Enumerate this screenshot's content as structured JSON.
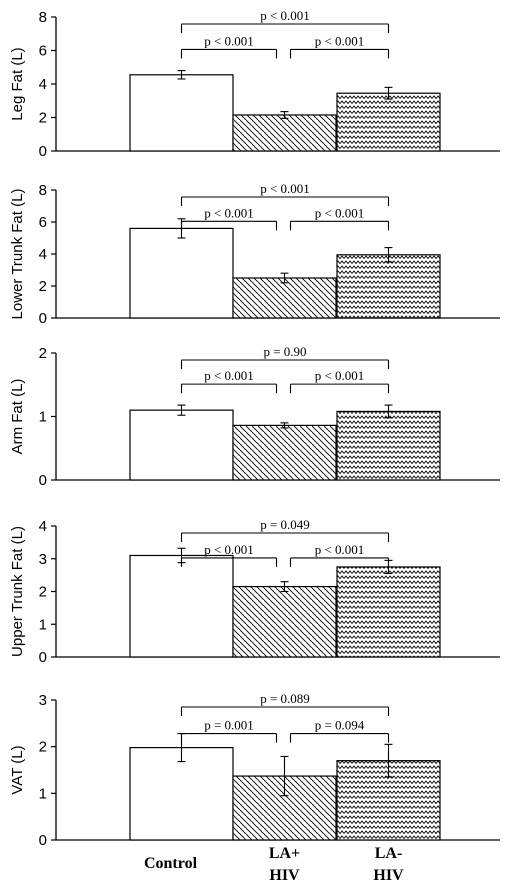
{
  "chart_data": {
    "type": "bar",
    "categories": [
      "Control",
      "LA+\nHIV",
      "LA-\nHIV"
    ],
    "category_label_lines": [
      [
        "Control"
      ],
      [
        "LA+",
        "HIV"
      ],
      [
        "LA-",
        "HIV"
      ]
    ],
    "bar_fills": [
      "plain",
      "diagonal-hatch",
      "zigzag"
    ],
    "panels": [
      {
        "ylabel": "Leg Fat (L)",
        "ylim": [
          0,
          8
        ],
        "yticks": [
          0,
          2,
          4,
          6,
          8
        ],
        "values": [
          4.55,
          2.15,
          3.45
        ],
        "errors": [
          0.25,
          0.2,
          0.35
        ],
        "comparisons": [
          {
            "from": 0,
            "to": 2,
            "level": 2,
            "label": "p < 0.001"
          },
          {
            "from": 0,
            "to": 1,
            "level": 1,
            "label": "p < 0.001"
          },
          {
            "from": 1,
            "to": 2,
            "level": 1,
            "label": "p < 0.001"
          }
        ]
      },
      {
        "ylabel": "Lower Trunk Fat (L)",
        "ylim": [
          0,
          8
        ],
        "yticks": [
          0,
          2,
          4,
          6,
          8
        ],
        "values": [
          5.6,
          2.5,
          3.95
        ],
        "errors": [
          0.6,
          0.3,
          0.45
        ],
        "comparisons": [
          {
            "from": 0,
            "to": 2,
            "level": 2,
            "label": "p < 0.001"
          },
          {
            "from": 0,
            "to": 1,
            "level": 1,
            "label": "p < 0.001"
          },
          {
            "from": 1,
            "to": 2,
            "level": 1,
            "label": "p < 0.001"
          }
        ]
      },
      {
        "ylabel": "Arm Fat (L)",
        "ylim": [
          0,
          2
        ],
        "yticks": [
          0,
          1,
          2
        ],
        "values": [
          1.1,
          0.86,
          1.08
        ],
        "errors": [
          0.08,
          0.04,
          0.1
        ],
        "comparisons": [
          {
            "from": 0,
            "to": 2,
            "level": 2,
            "label": "p = 0.90"
          },
          {
            "from": 0,
            "to": 1,
            "level": 1,
            "label": "p < 0.001"
          },
          {
            "from": 1,
            "to": 2,
            "level": 1,
            "label": "p < 0.001"
          }
        ]
      },
      {
        "ylabel": "Upper Trunk Fat (L)",
        "ylim": [
          0,
          4
        ],
        "yticks": [
          0,
          1,
          2,
          3,
          4
        ],
        "values": [
          3.1,
          2.15,
          2.75
        ],
        "errors": [
          0.22,
          0.15,
          0.2
        ],
        "comparisons": [
          {
            "from": 0,
            "to": 2,
            "level": 2,
            "label": "p = 0.049"
          },
          {
            "from": 0,
            "to": 1,
            "level": 1,
            "label": "p < 0.001"
          },
          {
            "from": 1,
            "to": 2,
            "level": 1,
            "label": "p < 0.001"
          }
        ]
      },
      {
        "ylabel": "VAT (L)",
        "ylim": [
          0,
          3
        ],
        "yticks": [
          0,
          1,
          2,
          3
        ],
        "values": [
          1.98,
          1.37,
          1.7
        ],
        "errors": [
          0.3,
          0.42,
          0.35
        ],
        "comparisons": [
          {
            "from": 0,
            "to": 2,
            "level": 2,
            "label": "p = 0.089"
          },
          {
            "from": 0,
            "to": 1,
            "level": 1,
            "label": "p = 0.001"
          },
          {
            "from": 1,
            "to": 2,
            "level": 1,
            "label": "p = 0.094"
          }
        ]
      }
    ]
  }
}
